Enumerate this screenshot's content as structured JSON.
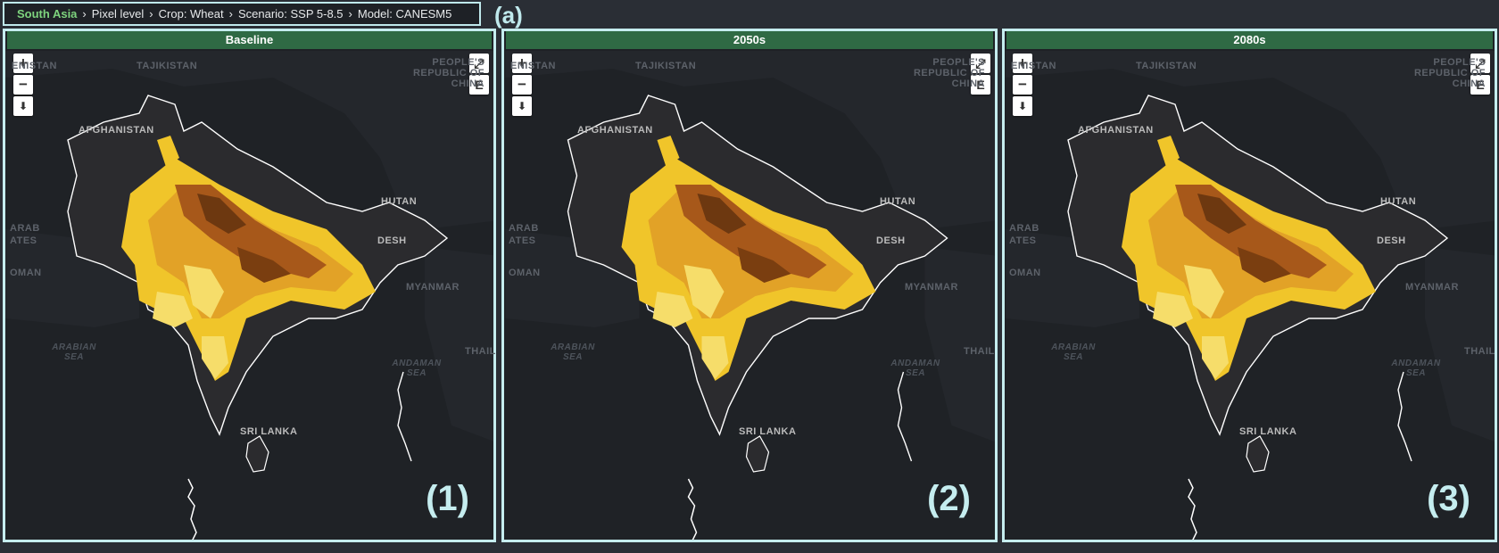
{
  "breadcrumb": {
    "root": "South Asia",
    "items": [
      "Pixel level",
      "Crop: Wheat",
      "Scenario: SSP 5-8.5",
      "Model: CANESM5"
    ]
  },
  "annotation_a": "(a)",
  "panels": [
    {
      "title": "Baseline",
      "number": "(1)"
    },
    {
      "title": "2050s",
      "number": "(2)"
    },
    {
      "title": "2080s",
      "number": "(3)"
    }
  ],
  "controls": {
    "zoom_in": "+",
    "zoom_out": "−",
    "download": "⬇",
    "fullscreen": "⤢",
    "export": "E"
  },
  "map_labels": {
    "tajikistan": "TAJIKISTAN",
    "kazakhstan_partial": "ENISTAN",
    "afghanistan": "AFGHANISTAN",
    "china": "PEOPLE'S REPUBLIC OF CHINA",
    "arab": "ARAB",
    "emirates": "ATES",
    "oman": "OMAN",
    "myanmar": "MYANMAR",
    "bhutan": "HUTAN",
    "bangladesh": "DESH",
    "thailand": "THAIL",
    "arabian_sea": "ARABIAN SEA",
    "andaman_sea": "ANDAMAN SEA",
    "sri_lanka": "SRI LANKA"
  },
  "colors": {
    "panel_border": "#c5edef",
    "title_bar": "#2f6a44",
    "breadcrumb_root": "#7ed37e",
    "yield_light": "#f6dd6a",
    "yield_mid": "#e9b51f",
    "yield_orange": "#d98a1c",
    "yield_dark": "#8a4a10"
  }
}
